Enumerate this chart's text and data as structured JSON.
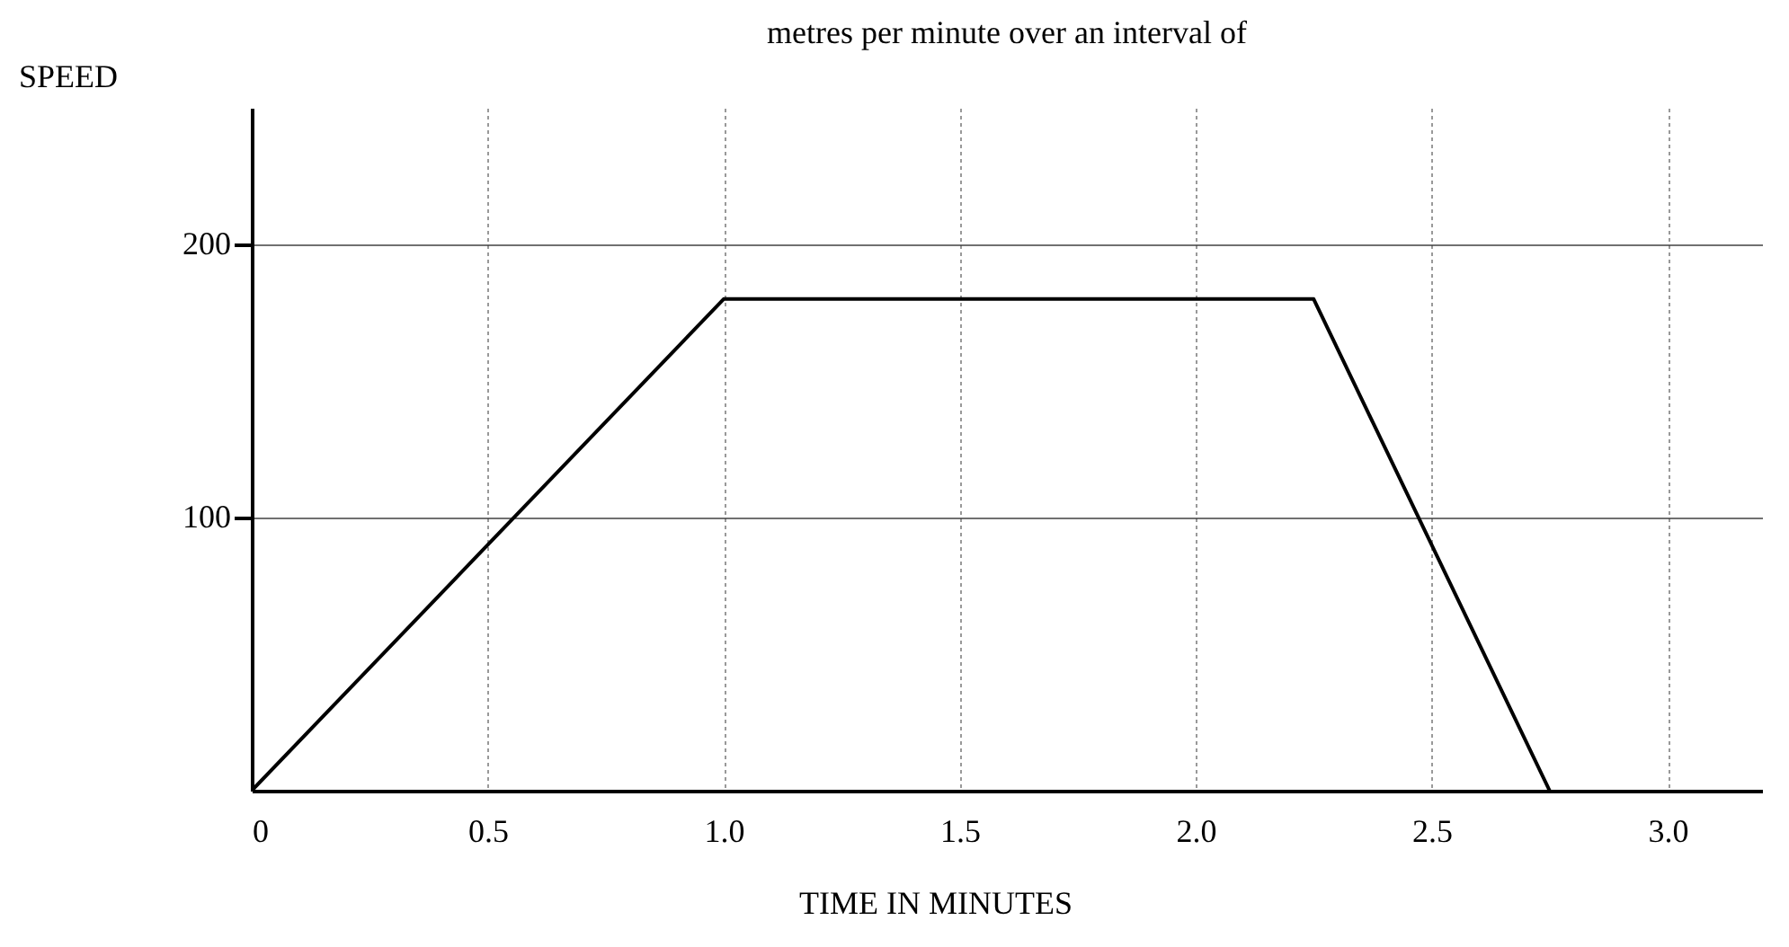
{
  "chart_data": {
    "type": "line",
    "title": "metres per minute over an interval of",
    "xlabel": "TIME IN MINUTES",
    "ylabel": "SPEED",
    "x": [
      0,
      1.0,
      2.25,
      2.75
    ],
    "series": [
      {
        "color": "#000000",
        "values": [
          0,
          180,
          180,
          0
        ]
      }
    ],
    "xlim": [
      0,
      3.2
    ],
    "ylim": [
      0,
      250
    ],
    "xticks": [
      0,
      0.5,
      {
        "value": 1,
        "label": "1.0"
      },
      1.5,
      {
        "value": 2,
        "label": "2.0"
      },
      2.5,
      {
        "value": 3,
        "label": "3.0"
      }
    ],
    "yticks": [
      100,
      200
    ],
    "grid": true
  }
}
